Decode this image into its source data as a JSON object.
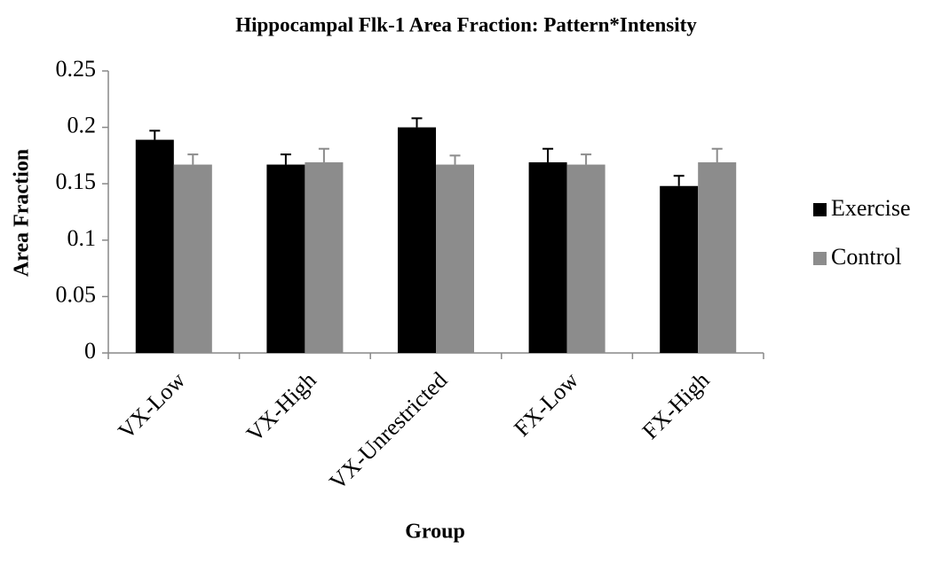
{
  "chart_data": {
    "type": "bar",
    "title": "Hippocampal Flk-1 Area Fraction: Pattern*Intensity",
    "x_label": "Group",
    "y_label": "Area Fraction",
    "categories": [
      "VX-Low",
      "VX-High",
      "VX-Unrestricted",
      "FX-Low",
      "FX-High"
    ],
    "series": [
      {
        "name": "Exercise",
        "color": "#000000",
        "values": [
          0.189,
          0.167,
          0.2,
          0.169,
          0.148
        ],
        "errors": [
          0.008,
          0.009,
          0.008,
          0.012,
          0.009
        ]
      },
      {
        "name": "Control",
        "color": "#8c8c8c",
        "values": [
          0.167,
          0.169,
          0.167,
          0.167,
          0.169
        ],
        "errors": [
          0.009,
          0.012,
          0.008,
          0.009,
          0.012
        ]
      }
    ],
    "ylim": [
      0,
      0.25
    ],
    "yticks": [
      0,
      0.05,
      0.1,
      0.15,
      0.2,
      0.25
    ],
    "grid": false,
    "legend": "right"
  }
}
